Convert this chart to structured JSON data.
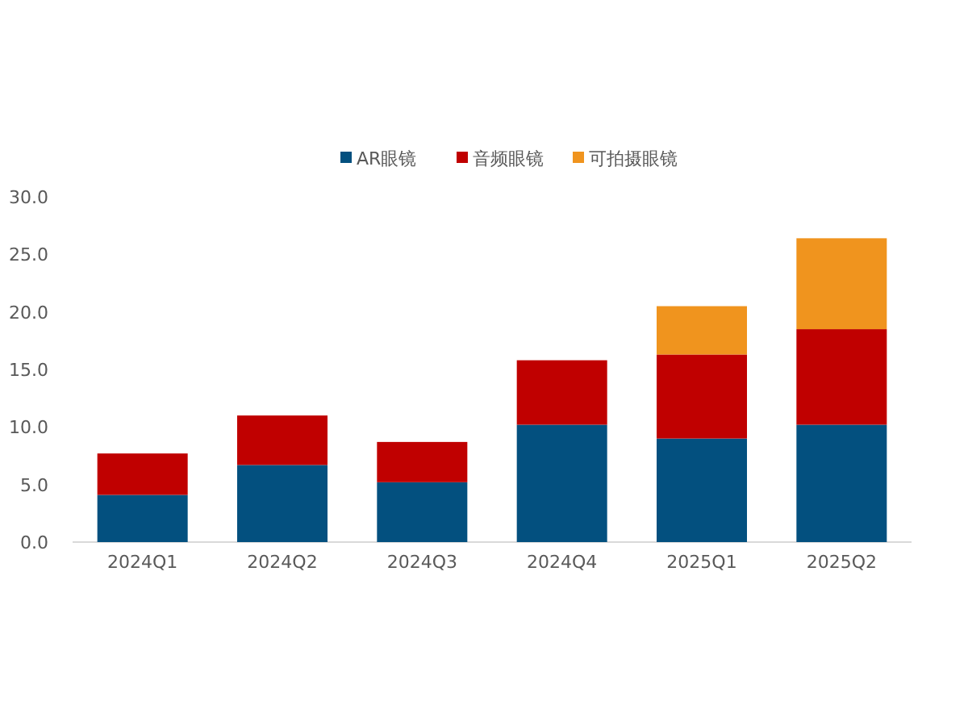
{
  "chart_data": {
    "type": "bar",
    "stacked": true,
    "categories": [
      "2024Q1",
      "2024Q2",
      "2024Q3",
      "2024Q4",
      "2025Q1",
      "2025Q2"
    ],
    "series": [
      {
        "name": "AR眼镜",
        "color": "#03507f",
        "values": [
          4.1,
          6.7,
          5.2,
          10.2,
          9.0,
          10.2
        ]
      },
      {
        "name": "音频眼镜",
        "color": "#c00000",
        "values": [
          3.6,
          4.3,
          3.5,
          5.6,
          7.3,
          8.3
        ]
      },
      {
        "name": "可拍摄眼镜",
        "color": "#f0941e",
        "values": [
          null,
          null,
          null,
          null,
          4.2,
          7.9
        ]
      }
    ],
    "ylim": [
      0,
      30
    ],
    "yticks": [
      {
        "value": 0,
        "label": "0.0"
      },
      {
        "value": 5,
        "label": "5.0"
      },
      {
        "value": 10,
        "label": "10.0"
      },
      {
        "value": 15,
        "label": "15.0"
      },
      {
        "value": 20,
        "label": "20.0"
      },
      {
        "value": 25,
        "label": "25.0"
      },
      {
        "value": 30,
        "label": "30.0"
      }
    ],
    "grid": false,
    "legend": "top"
  }
}
